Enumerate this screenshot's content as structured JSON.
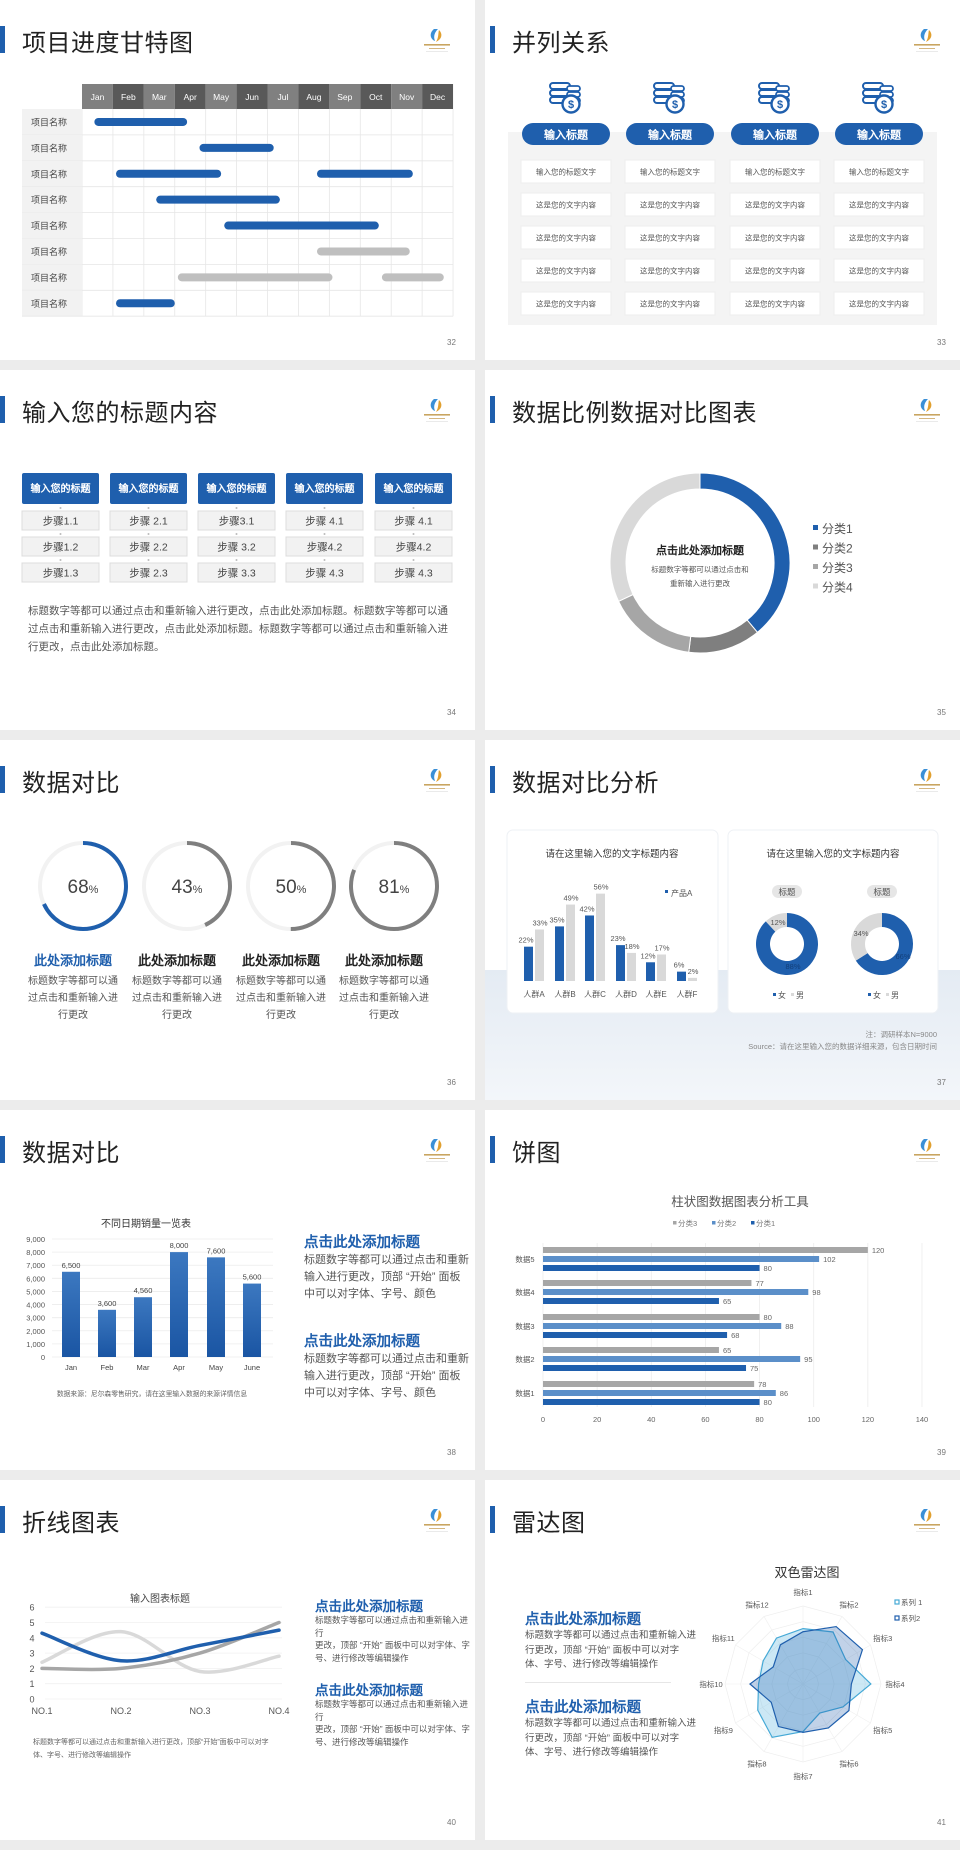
{
  "colors": {
    "primary": "#1f5fad",
    "gray_dark": "#595959",
    "gray_mid": "#808080",
    "gray_light": "#bfbfbf",
    "light_blue": "#5b8fc9",
    "cyan": "#45a9d6"
  },
  "slides": [
    {
      "title": "项目进度甘特图",
      "page": "32"
    },
    {
      "title": "并列关系",
      "page": "33"
    },
    {
      "title": "输入您的标题内容",
      "page": "34"
    },
    {
      "title": "数据比例数据对比图表",
      "page": "35"
    },
    {
      "title": "数据对比",
      "page": "36"
    },
    {
      "title": "数据对比分析",
      "page": "37"
    },
    {
      "title": "数据对比",
      "page": "38"
    },
    {
      "title": "饼图",
      "page": "39"
    },
    {
      "title": "折线图表",
      "page": "40"
    },
    {
      "title": "雷达图",
      "page": "41"
    }
  ],
  "gantt": {
    "months": [
      "Jan",
      "Feb",
      "Mar",
      "Apr",
      "May",
      "Jun",
      "Jul",
      "Aug",
      "Sep",
      "Oct",
      "Nov",
      "Dec"
    ],
    "rows": [
      {
        "label": "项目名称",
        "bars": [
          {
            "start_month": 0.4,
            "end_month": 3.4,
            "status": "active"
          }
        ]
      },
      {
        "label": "项目名称",
        "bars": [
          {
            "start_month": 3.8,
            "end_month": 6.2,
            "status": "active"
          }
        ]
      },
      {
        "label": "项目名称",
        "bars": [
          {
            "start_month": 1.1,
            "end_month": 4.5,
            "status": "active"
          },
          {
            "start_month": 7.6,
            "end_month": 10.7,
            "status": "active"
          }
        ]
      },
      {
        "label": "项目名称",
        "bars": [
          {
            "start_month": 2.4,
            "end_month": 6.4,
            "status": "active"
          }
        ]
      },
      {
        "label": "项目名称",
        "bars": [
          {
            "start_month": 4.6,
            "end_month": 9.6,
            "status": "active"
          }
        ]
      },
      {
        "label": "项目名称",
        "bars": [
          {
            "start_month": 7.6,
            "end_month": 10.6,
            "status": "inactive"
          }
        ]
      },
      {
        "label": "项目名称",
        "bars": [
          {
            "start_month": 3.1,
            "end_month": 8.1,
            "status": "inactive"
          },
          {
            "start_month": 9.7,
            "end_month": 11.7,
            "status": "inactive"
          }
        ]
      },
      {
        "label": "项目名称",
        "bars": [
          {
            "start_month": 1.1,
            "end_month": 3.0,
            "status": "active"
          }
        ]
      }
    ]
  },
  "parallel": {
    "icon": "coins-dollar-icon",
    "columns": [
      {
        "button": "输入标题",
        "cells": [
          "输入您的标题文字",
          "这是您的文字内容",
          "这是您的文字内容",
          "这是您的文字内容",
          "这是您的文字内容"
        ]
      },
      {
        "button": "输入标题",
        "cells": [
          "输入您的标题文字",
          "这是您的文字内容",
          "这是您的文字内容",
          "这是您的文字内容",
          "这是您的文字内容"
        ]
      },
      {
        "button": "输入标题",
        "cells": [
          "输入您的标题文字",
          "这是您的文字内容",
          "这是您的文字内容",
          "这是您的文字内容",
          "这是您的文字内容"
        ]
      },
      {
        "button": "输入标题",
        "cells": [
          "输入您的标题文字",
          "这是您的文字内容",
          "这是您的文字内容",
          "这是您的文字内容",
          "这是您的文字内容"
        ]
      }
    ]
  },
  "steps": {
    "columns": [
      {
        "header": "输入您的标题",
        "steps": [
          "步骤1.1",
          "步骤1.2",
          "步骤1.3"
        ]
      },
      {
        "header": "输入您的标题",
        "steps": [
          "步骤 2.1",
          "步骤 2.2",
          "步骤 2.3"
        ]
      },
      {
        "header": "输入您的标题",
        "steps": [
          "步骤3.1",
          "步骤 3.2",
          "步骤 3.3"
        ]
      },
      {
        "header": "输入您的标题",
        "steps": [
          "步骤 4.1",
          "步骤4.2",
          "步骤 4.3"
        ]
      },
      {
        "header": "输入您的标题",
        "steps": [
          "步骤 4.1",
          "步骤4.2",
          "步骤 4.3"
        ]
      }
    ],
    "paragraph": "标题数字等都可以通过点击和重新输入进行更改，点击此处添加标题。标题数字等都可以通过点击和重新输入进行更改，点击此处添加标题。标题数字等都可以通过点击和重新输入进行更改，点击此处添加标题。"
  },
  "chart_data": [
    {
      "type": "pie",
      "variant": "donut",
      "center_title": "点击此处添加标题",
      "center_text": [
        "标题数字等都可以通过点击和",
        "重新输入进行更改"
      ],
      "categories": [
        "分类1",
        "分类2",
        "分类3",
        "分类4"
      ],
      "values": [
        39,
        13,
        16,
        32
      ],
      "colors": [
        "#1f5fad",
        "#7f7f7f",
        "#a6a6a6",
        "#d9d9d9"
      ],
      "legend": "right"
    },
    {
      "type": "pie",
      "variant": "progress-rings",
      "items": [
        {
          "value": 68,
          "title": "此处添加标题",
          "text": [
            "标题数字等都可以通",
            "过点击和重新输入进",
            "行更改"
          ],
          "color": "#1f5fad"
        },
        {
          "value": 43,
          "title": "此处添加标题",
          "text": [
            "标题数字等都可以通",
            "过点击和重新输入进",
            "行更改"
          ],
          "color": "#7f7f7f"
        },
        {
          "value": 50,
          "title": "此处添加标题",
          "text": [
            "标题数字等都可以通",
            "过点击和重新输入进",
            "行更改"
          ],
          "color": "#7f7f7f"
        },
        {
          "value": 81,
          "title": "此处添加标题",
          "text": [
            "标题数字等都可以通",
            "过点击和重新输入进",
            "行更改"
          ],
          "color": "#7f7f7f"
        }
      ],
      "unit": "%"
    },
    {
      "type": "bar",
      "title": "请在这里输入您的文字标题内容",
      "categories": [
        "人群A",
        "人群B",
        "人群C",
        "人群D",
        "人群E",
        "人群F"
      ],
      "series": [
        {
          "name": "产品A",
          "values": [
            22,
            35,
            42,
            23,
            12,
            6
          ],
          "color": "#1f5fad"
        },
        {
          "values": [
            33,
            49,
            56,
            18,
            17,
            2
          ],
          "color": "#d9d9d9"
        }
      ],
      "unit": "%",
      "legend": "top-right"
    },
    {
      "type": "pie",
      "variant": "donut-pair",
      "title": "请在这里输入您的文字标题内容",
      "charts": [
        {
          "label": "标题",
          "values": [
            88,
            12
          ]
        },
        {
          "label": "标题",
          "values": [
            66,
            34
          ]
        }
      ],
      "categories": [
        "女",
        "男"
      ],
      "colors": [
        "#1f5fad",
        "#d9d9d9"
      ],
      "legend": "bottom",
      "notes": [
        "注：调研样本N=9000",
        "Source：请在这里输入您的数据详细来源，包含日期时间"
      ]
    },
    {
      "type": "bar",
      "title": "不同日期销量一览表",
      "categories": [
        "Jan",
        "Feb",
        "Mar",
        "Apr",
        "May",
        "June"
      ],
      "values": [
        6500,
        3600,
        4560,
        8000,
        7600,
        5600
      ],
      "value_labels": [
        "6,500",
        "3,600",
        "4,560",
        "8,000",
        "7,600",
        "5,600"
      ],
      "ylim": [
        0,
        9000
      ],
      "yticks": [
        "0",
        "1,000",
        "2,000",
        "3,000",
        "4,000",
        "5,000",
        "6,000",
        "7,000",
        "8,000",
        "9,000"
      ],
      "grid": true,
      "source": "数据来源：尼尔森零售研究，请在这里输入数据的来源详情信息"
    },
    {
      "type": "bar",
      "orientation": "horizontal",
      "title": "柱状图数据图表分析工具",
      "categories": [
        "数据5",
        "数据4",
        "数据3",
        "数据2",
        "数据1"
      ],
      "series": [
        {
          "name": "分类3",
          "values": [
            120,
            77,
            80,
            65,
            78
          ],
          "color": "#a6a6a6"
        },
        {
          "name": "分类2",
          "values": [
            102,
            98,
            88,
            95,
            86
          ],
          "color": "#5b8fc9"
        },
        {
          "name": "分类1",
          "values": [
            80,
            65,
            68,
            75,
            80
          ],
          "color": "#1f5fad"
        }
      ],
      "xlim": [
        0,
        140
      ],
      "xticks": [
        "0",
        "20",
        "40",
        "60",
        "80",
        "100",
        "120",
        "140"
      ],
      "legend": "top",
      "grid": true
    },
    {
      "type": "line",
      "smooth": true,
      "title": "输入图表标题",
      "categories": [
        "NO.1",
        "NO.2",
        "NO.3",
        "NO.4"
      ],
      "series": [
        {
          "values": [
            4.3,
            2.5,
            3.5,
            4.5
          ],
          "color": "#1f5fad"
        },
        {
          "values": [
            2.4,
            4.4,
            1.8,
            2.8
          ],
          "color": "#d9d9d9"
        },
        {
          "values": [
            2.0,
            2.0,
            3.0,
            5.0
          ],
          "color": "#a6a6a6"
        }
      ],
      "ylim": [
        0,
        6
      ],
      "yticks": [
        "0",
        "1",
        "2",
        "3",
        "4",
        "5",
        "6"
      ],
      "grid": true,
      "caption": [
        "标题数字等都可以通过点击和重新输入进行更改，顶部“开始”面板中可以对字",
        "体、字号、进行修改等编辑操作"
      ]
    },
    {
      "type": "radar",
      "title": "双色雷达图",
      "axes": [
        "指标1",
        "指标2",
        "指标3",
        "指标4",
        "指标5",
        "指标6",
        "指标7",
        "指标8",
        "指标9",
        "指标10",
        "指标11",
        "指标12"
      ],
      "series": [
        {
          "name": "系列 1",
          "values": [
            71,
            77,
            63,
            87,
            59,
            43,
            61,
            79,
            67,
            57,
            59,
            68
          ],
          "color": "#45a9d6"
        },
        {
          "name": "系列2",
          "values": [
            67,
            85,
            88,
            62,
            68,
            65,
            62,
            63,
            47,
            68,
            44,
            58
          ],
          "color": "#1f5fad"
        }
      ],
      "rmax": 100,
      "legend": "top-right"
    }
  ],
  "text_blocks": {
    "bar_slide": [
      {
        "heading": "点击此处添加标题",
        "lines": [
          "标题数字等都可以通过点击和重新",
          "输入进行更改，顶部 “开始” 面板",
          "中可以对字体、字号、颜色"
        ]
      },
      {
        "heading": "点击此处添加标题",
        "lines": [
          "标题数字等都可以通过点击和重新",
          "输入进行更改，顶部 “开始” 面板",
          "中可以对字体、字号、颜色"
        ]
      }
    ],
    "line_slide": [
      {
        "heading": "点击此处添加标题",
        "lines": [
          "标题数字等都可以通过点击和重新输入进行",
          "更改，顶部 “开始” 面板中可以对字体、字",
          "号、进行修改等编辑操作"
        ]
      },
      {
        "heading": "点击此处添加标题",
        "lines": [
          "标题数字等都可以通过点击和重新输入进行",
          "更改，顶部 “开始” 面板中可以对字体、字",
          "号、进行修改等编辑操作"
        ]
      }
    ],
    "radar_slide": [
      {
        "heading": "点击此处添加标题",
        "lines": [
          "标题数字等都可以通过点击和重新输入进",
          "行更改，顶部 “开始” 面板中可以对字",
          "体、字号、进行修改等编辑操作"
        ]
      },
      {
        "heading": "点击此处添加标题",
        "lines": [
          "标题数字等都可以通过点击和重新输入进",
          "行更改，顶部 “开始” 面板中可以对字",
          "体、字号、进行修改等编辑操作"
        ]
      }
    ]
  }
}
